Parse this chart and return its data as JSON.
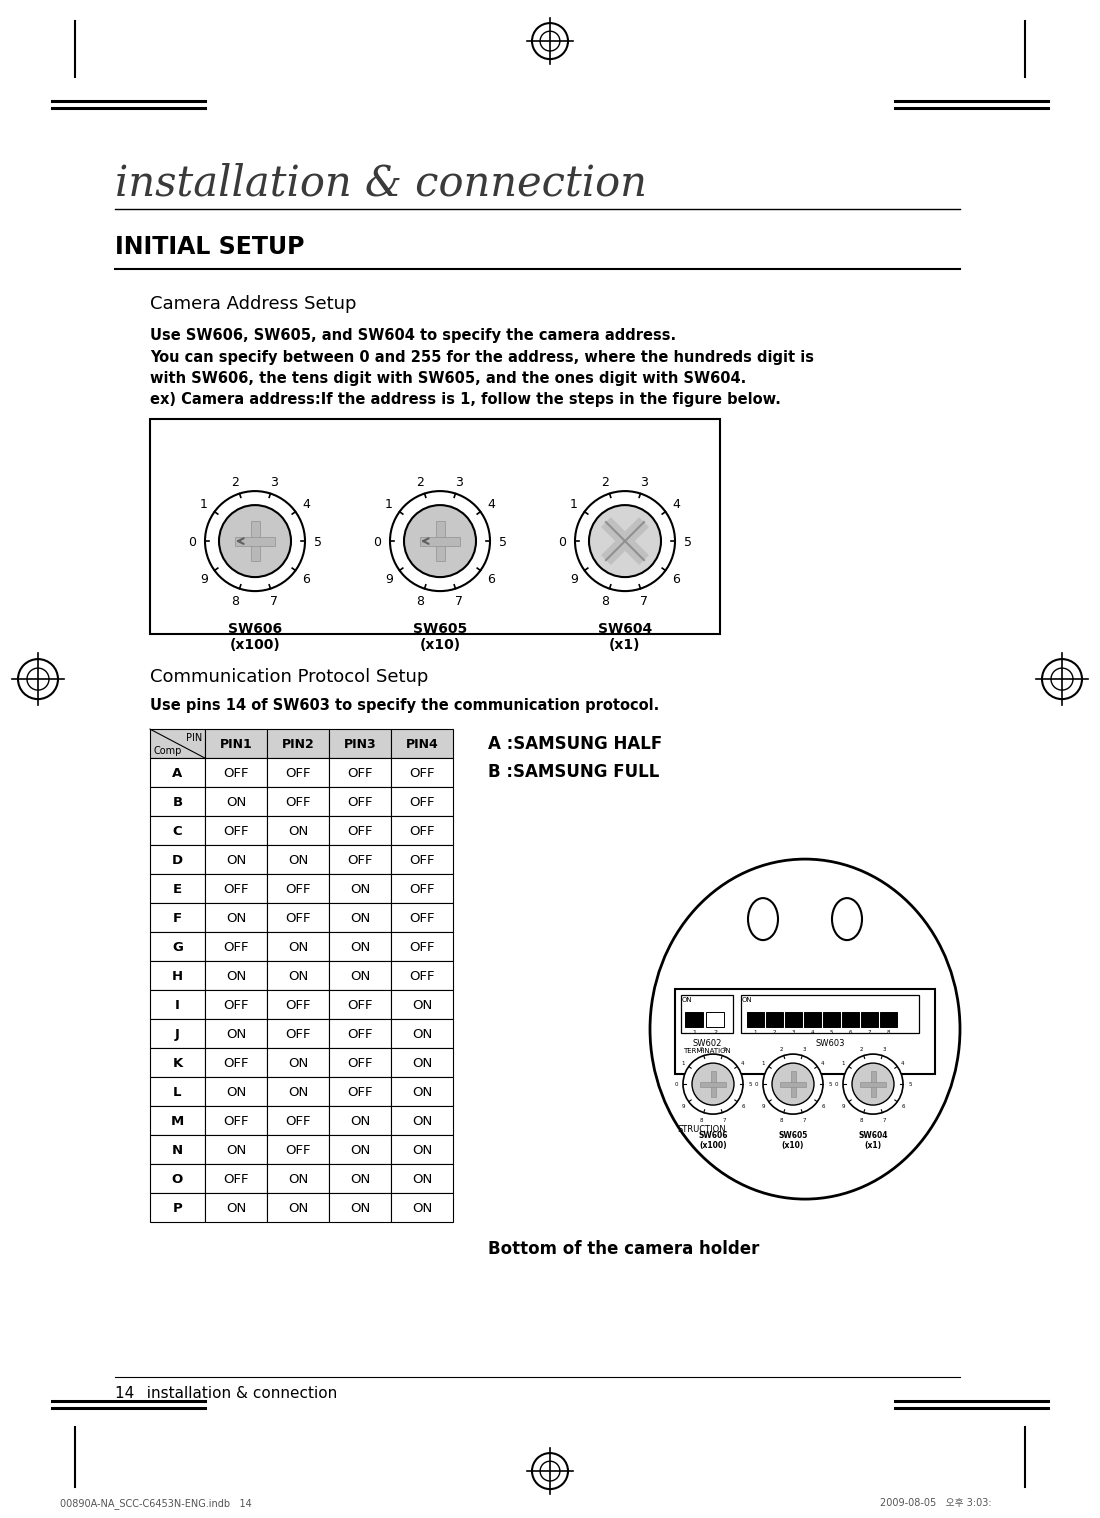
{
  "bg_color": "#ffffff",
  "title_main": "installation & connection",
  "title_section": "INITIAL SETUP",
  "section1_title": "Camera Address Setup",
  "section1_body_line1": "Use SW606, SW605, and SW604 to specify the camera address.",
  "section1_body_line2": "You can specify between 0 and 255 for the address, where the hundreds digit is",
  "section1_body_line3": "with SW606, the tens digit with SW605, and the ones digit with SW604.",
  "section1_body_line4": "ex) Camera address:If the address is 1, follow the steps in the figure below.",
  "section2_title": "Communication Protocol Setup",
  "section2_body": "Use pins 14 of SW603 to specify the communication protocol.",
  "legend_A": "A :SAMSUNG HALF",
  "legend_B": "B :SAMSUNG FULL",
  "bottom_label": "Bottom of the camera holder",
  "table_headers_row": [
    "PIN1",
    "PIN2",
    "PIN3",
    "PIN4"
  ],
  "table_rows": [
    [
      "A",
      "OFF",
      "OFF",
      "OFF",
      "OFF"
    ],
    [
      "B",
      "ON",
      "OFF",
      "OFF",
      "OFF"
    ],
    [
      "C",
      "OFF",
      "ON",
      "OFF",
      "OFF"
    ],
    [
      "D",
      "ON",
      "ON",
      "OFF",
      "OFF"
    ],
    [
      "E",
      "OFF",
      "OFF",
      "ON",
      "OFF"
    ],
    [
      "F",
      "ON",
      "OFF",
      "ON",
      "OFF"
    ],
    [
      "G",
      "OFF",
      "ON",
      "ON",
      "OFF"
    ],
    [
      "H",
      "ON",
      "ON",
      "ON",
      "OFF"
    ],
    [
      "I",
      "OFF",
      "OFF",
      "OFF",
      "ON"
    ],
    [
      "J",
      "ON",
      "OFF",
      "OFF",
      "ON"
    ],
    [
      "K",
      "OFF",
      "ON",
      "OFF",
      "ON"
    ],
    [
      "L",
      "ON",
      "ON",
      "OFF",
      "ON"
    ],
    [
      "M",
      "OFF",
      "OFF",
      "ON",
      "ON"
    ],
    [
      "N",
      "ON",
      "OFF",
      "ON",
      "ON"
    ],
    [
      "O",
      "OFF",
      "ON",
      "ON",
      "ON"
    ],
    [
      "P",
      "ON",
      "ON",
      "ON",
      "ON"
    ]
  ],
  "sw_labels": [
    "SW606\n(x100)",
    "SW605\n(x10)",
    "SW604\n(x1)"
  ],
  "footer_text": "14_ installation & connection",
  "bottom_file": "00890A-NA_SCC-C6453N-ENG.indb   14",
  "bottom_date": "2009-08-05   오후 3:03:"
}
